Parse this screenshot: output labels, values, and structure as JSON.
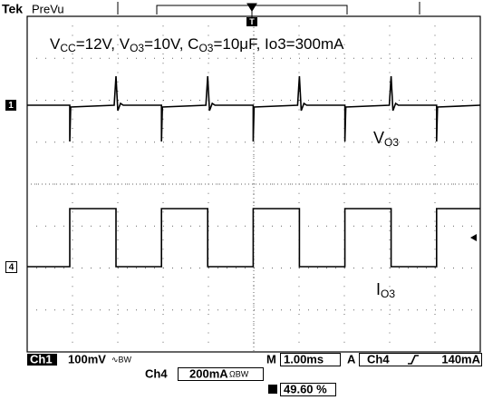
{
  "header": {
    "brand": "Tek",
    "mode": "PreVu"
  },
  "annotation": {
    "parts": [
      "V",
      "CC",
      "=12V, V",
      "O3",
      "=10V, C",
      "O3",
      "=10μF, Io3=300mA"
    ]
  },
  "labels": {
    "vo3": [
      "V",
      "O3"
    ],
    "io3": [
      "I",
      "O3"
    ]
  },
  "markers": {
    "ch1": "1",
    "ch4": "4",
    "trigger": "T"
  },
  "status": {
    "ch1": "Ch1",
    "ch1_scale": "100mV",
    "ch1_coupling": "∿BW",
    "time_prefix": "M",
    "timebase": "1.00ms",
    "trigger_prefix": "A",
    "trigger_source": "Ch4",
    "trigger_level": "140mA",
    "ch4": "Ch4",
    "ch4_scale": "200mA",
    "ch4_coupling": "ΩBW",
    "trigger_position": "49.60 %"
  }
}
